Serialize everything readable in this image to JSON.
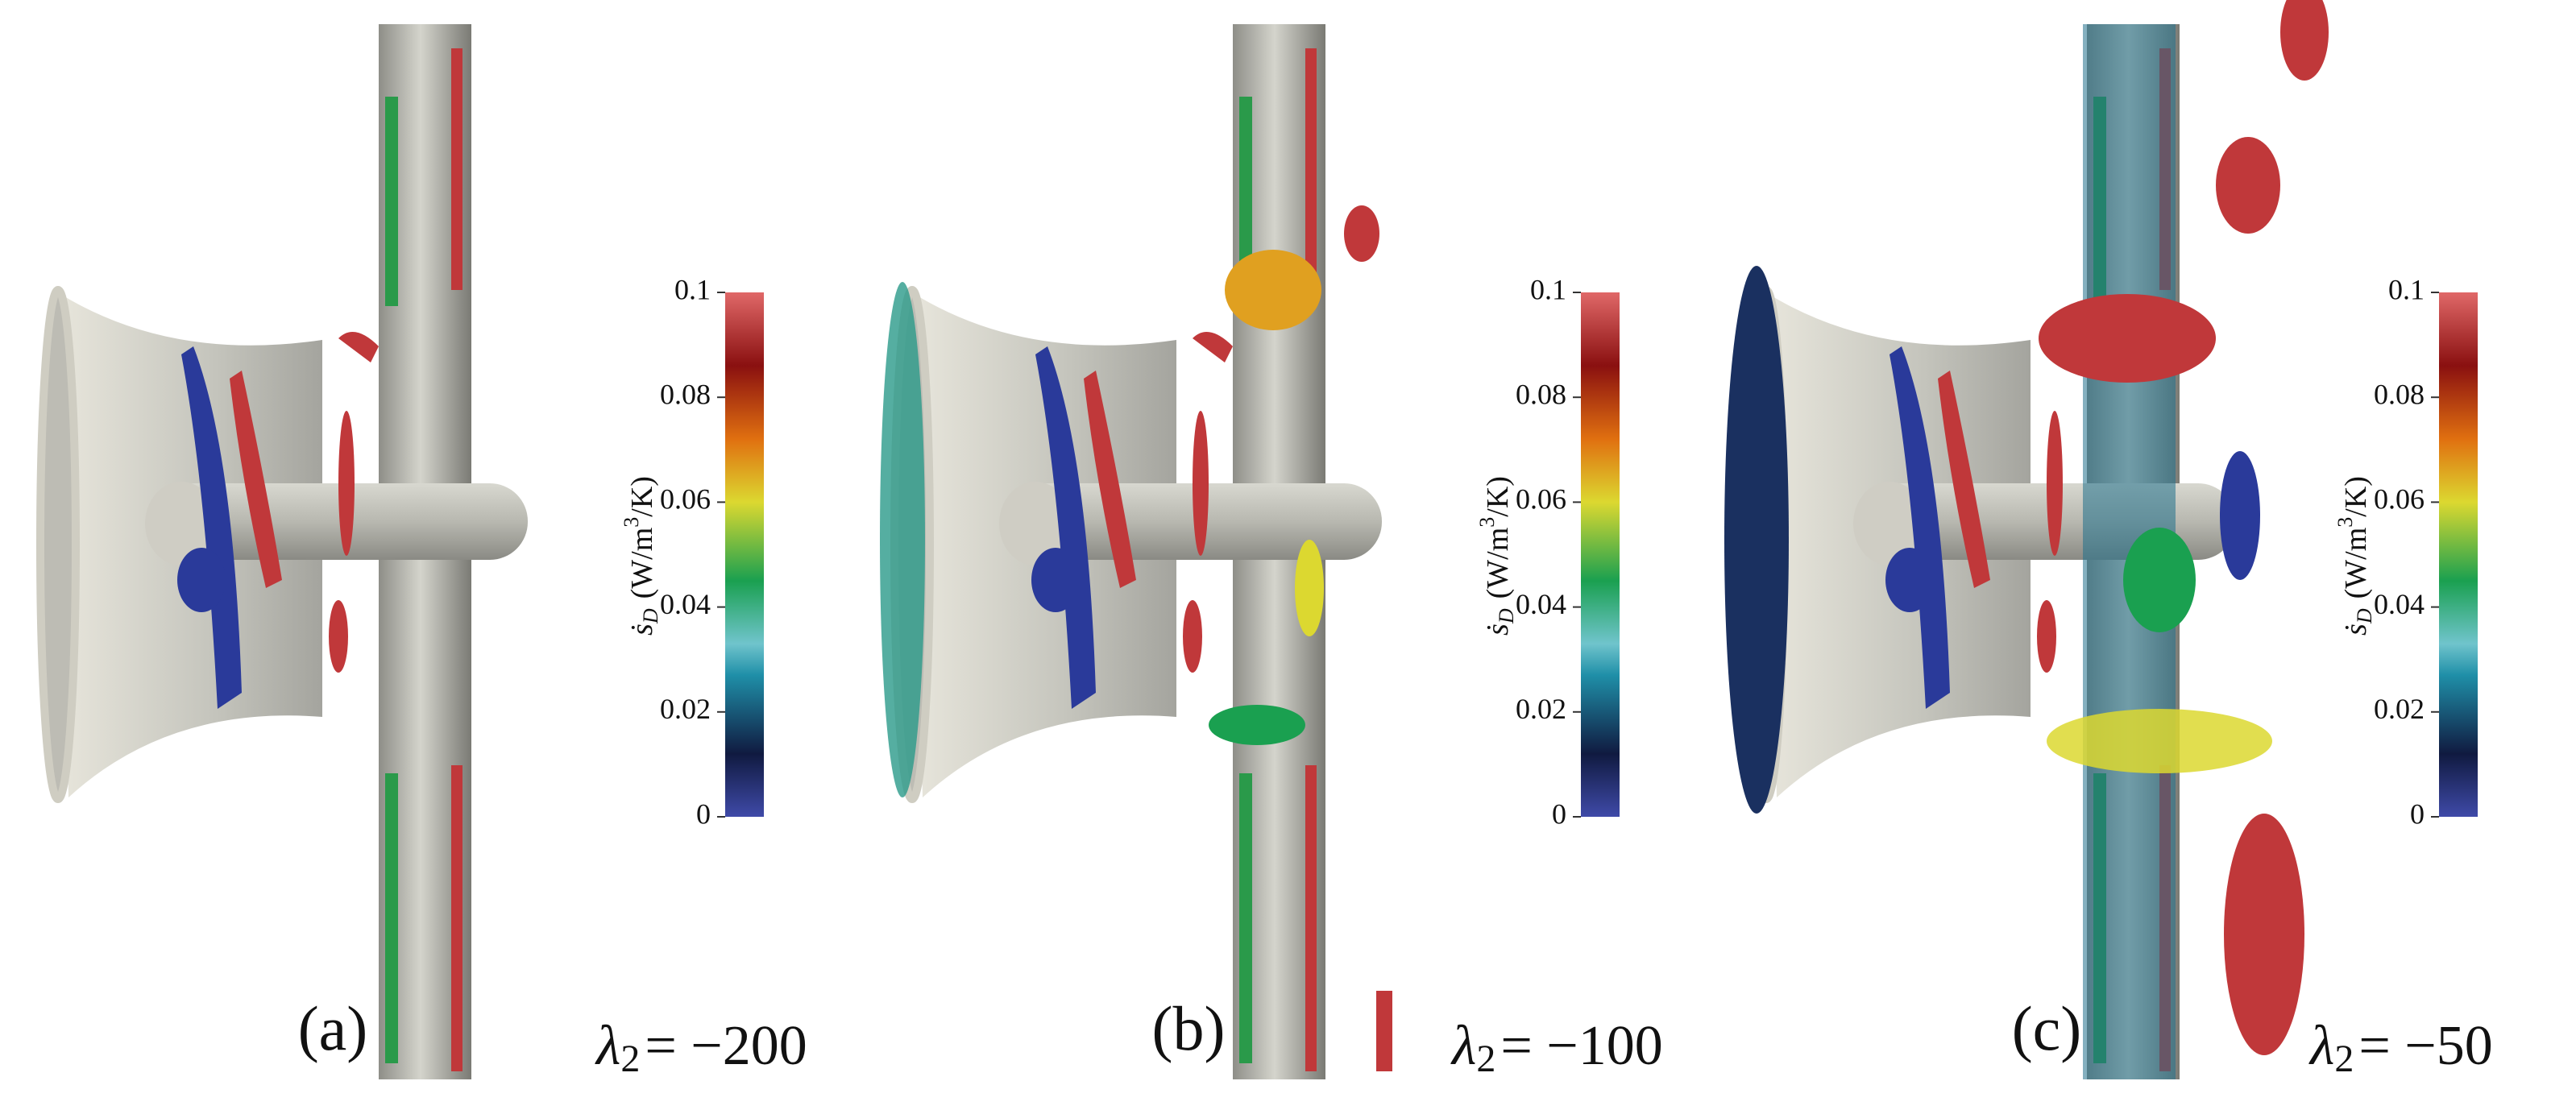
{
  "colorbar": {
    "label": {
      "symbol": "ṡ",
      "subscript": "D",
      "unit": "(W/m",
      "superscript": "3",
      "unit_end": "/K)"
    },
    "lim": [
      0,
      0.1
    ],
    "ticks": [
      0,
      0.02,
      0.04,
      0.06,
      0.08,
      0.1
    ]
  },
  "panels": [
    {
      "label": "(a)",
      "lambda": {
        "symbol": "λ",
        "subscript": "2",
        "text": "= −200"
      }
    },
    {
      "label": "(b)",
      "lambda": {
        "symbol": "λ",
        "subscript": "2",
        "text": "= −100"
      }
    },
    {
      "label": "(c)",
      "lambda": {
        "symbol": "λ",
        "subscript": "2",
        "text": "= −50"
      }
    }
  ]
}
